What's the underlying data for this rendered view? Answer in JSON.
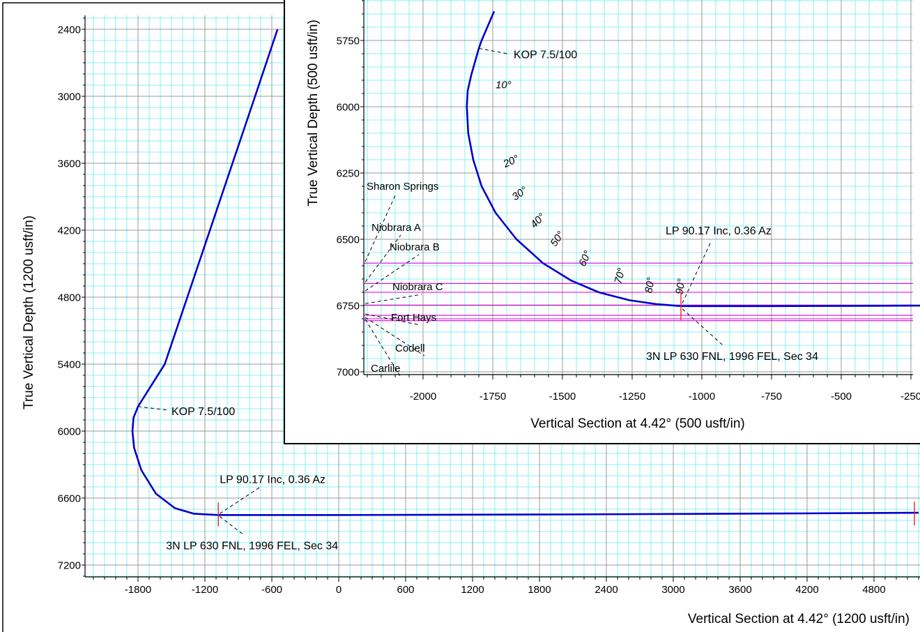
{
  "chart_data": [
    {
      "type": "line",
      "xlabel": "Vertical Section at 4.42° (1200 usft/in)",
      "ylabel": "True Vertical Depth (1200 usft/in)",
      "xlim": [
        -2100,
        5200
      ],
      "ylim": [
        7200,
        2400
      ],
      "y_inverted": true,
      "x_ticks": [
        -1800,
        -1200,
        -600,
        0,
        600,
        1200,
        1800,
        2400,
        3000,
        3600,
        4200,
        4800
      ],
      "y_ticks": [
        2400,
        3000,
        3600,
        4200,
        4800,
        5400,
        6000,
        6600,
        7200
      ],
      "grid": true,
      "series": [
        {
          "color": "#0000cc",
          "points": [
            [
              -549,
              2400
            ],
            [
              -750,
              3000
            ],
            [
              -1020,
              3800
            ],
            [
              -1290,
              4600
            ],
            [
              -1560,
              5400
            ],
            [
              -1800,
              5780
            ],
            [
              -1840,
              5880
            ],
            [
              -1850,
              6000
            ],
            [
              -1835,
              6150
            ],
            [
              -1770,
              6350
            ],
            [
              -1640,
              6560
            ],
            [
              -1470,
              6690
            ],
            [
              -1300,
              6740
            ],
            [
              -1080,
              6752
            ],
            [
              0,
              6752
            ],
            [
              2000,
              6747
            ],
            [
              4000,
              6738
            ],
            [
              5200,
              6732
            ]
          ]
        }
      ],
      "annotations": [
        {
          "text": "KOP 7.5/100",
          "x": -1800,
          "y": 5780
        },
        {
          "text": "LP 90.17 Inc, 0.36 Az",
          "x": -1080,
          "y": 6752
        },
        {
          "text": "3N LP 630 FNL, 1996 FEL, Sec 34",
          "x": -1080,
          "y": 6752
        }
      ]
    },
    {
      "type": "line",
      "xlabel": "Vertical Section at 4.42° (500 usft/in)",
      "ylabel": "True Vertical Depth (500 usft/in)",
      "xlim": [
        -2185,
        -165
      ],
      "ylim": [
        7000,
        5640
      ],
      "y_inverted": true,
      "x_ticks": [
        -2000,
        -1750,
        -1500,
        -1250,
        -1000,
        -750,
        -500,
        -250
      ],
      "y_ticks": [
        5750,
        6000,
        6250,
        6500,
        6750,
        7000
      ],
      "grid": true,
      "series": [
        {
          "color": "#0000cc",
          "points": [
            [
              -1745,
              5640
            ],
            [
              -1790,
              5750
            ],
            [
              -1800,
              5780
            ],
            [
              -1827,
              5880
            ],
            [
              -1840,
              5940
            ],
            [
              -1843,
              6000
            ],
            [
              -1838,
              6100
            ],
            [
              -1820,
              6200
            ],
            [
              -1790,
              6300
            ],
            [
              -1740,
              6400
            ],
            [
              -1665,
              6500
            ],
            [
              -1570,
              6590
            ],
            [
              -1470,
              6655
            ],
            [
              -1370,
              6700
            ],
            [
              -1260,
              6730
            ],
            [
              -1160,
              6745
            ],
            [
              -1075,
              6752
            ],
            [
              -750,
              6752
            ],
            [
              -400,
              6751
            ],
            [
              -165,
              6750
            ]
          ]
        }
      ],
      "inclination_labels": [
        {
          "text": "10°",
          "x": -1740,
          "y": 5930
        },
        {
          "text": "20°",
          "x": -1705,
          "y": 6230
        },
        {
          "text": "30°",
          "x": -1670,
          "y": 6355
        },
        {
          "text": "40°",
          "x": -1600,
          "y": 6460
        },
        {
          "text": "50°",
          "x": -1525,
          "y": 6530
        },
        {
          "text": "60°",
          "x": -1420,
          "y": 6605
        },
        {
          "text": "70°",
          "x": -1290,
          "y": 6670
        },
        {
          "text": "80°",
          "x": -1180,
          "y": 6705
        },
        {
          "text": "90°",
          "x": -1070,
          "y": 6710
        }
      ],
      "formations": [
        {
          "name": "Sharon Springs",
          "tvd": 6590
        },
        {
          "name": "Niobrara A",
          "tvd": 6667
        },
        {
          "name": "Niobrara B",
          "tvd": 6700
        },
        {
          "name": "Niobrara C",
          "tvd": 6748
        },
        {
          "name": "Fort Hays",
          "tvd": 6787
        },
        {
          "name": "Codell",
          "tvd": 6800
        },
        {
          "name": "Carlile",
          "tvd": 6807
        }
      ],
      "formation_color": "#dd00dd",
      "annotations": [
        {
          "text": "KOP 7.5/100",
          "x": -1800,
          "y": 5780
        },
        {
          "text": "LP 90.17 Inc, 0.36 Az",
          "x": -1075,
          "y": 6752
        },
        {
          "text": "3N LP 630 FNL, 1996 FEL, Sec 34",
          "x": -1075,
          "y": 6752
        }
      ]
    }
  ],
  "colors": {
    "curve": "#0000cc",
    "formation": "#dd00dd",
    "grid_minor": "#66eeee",
    "grid_major": "#999999",
    "marker": "#ee2222"
  }
}
